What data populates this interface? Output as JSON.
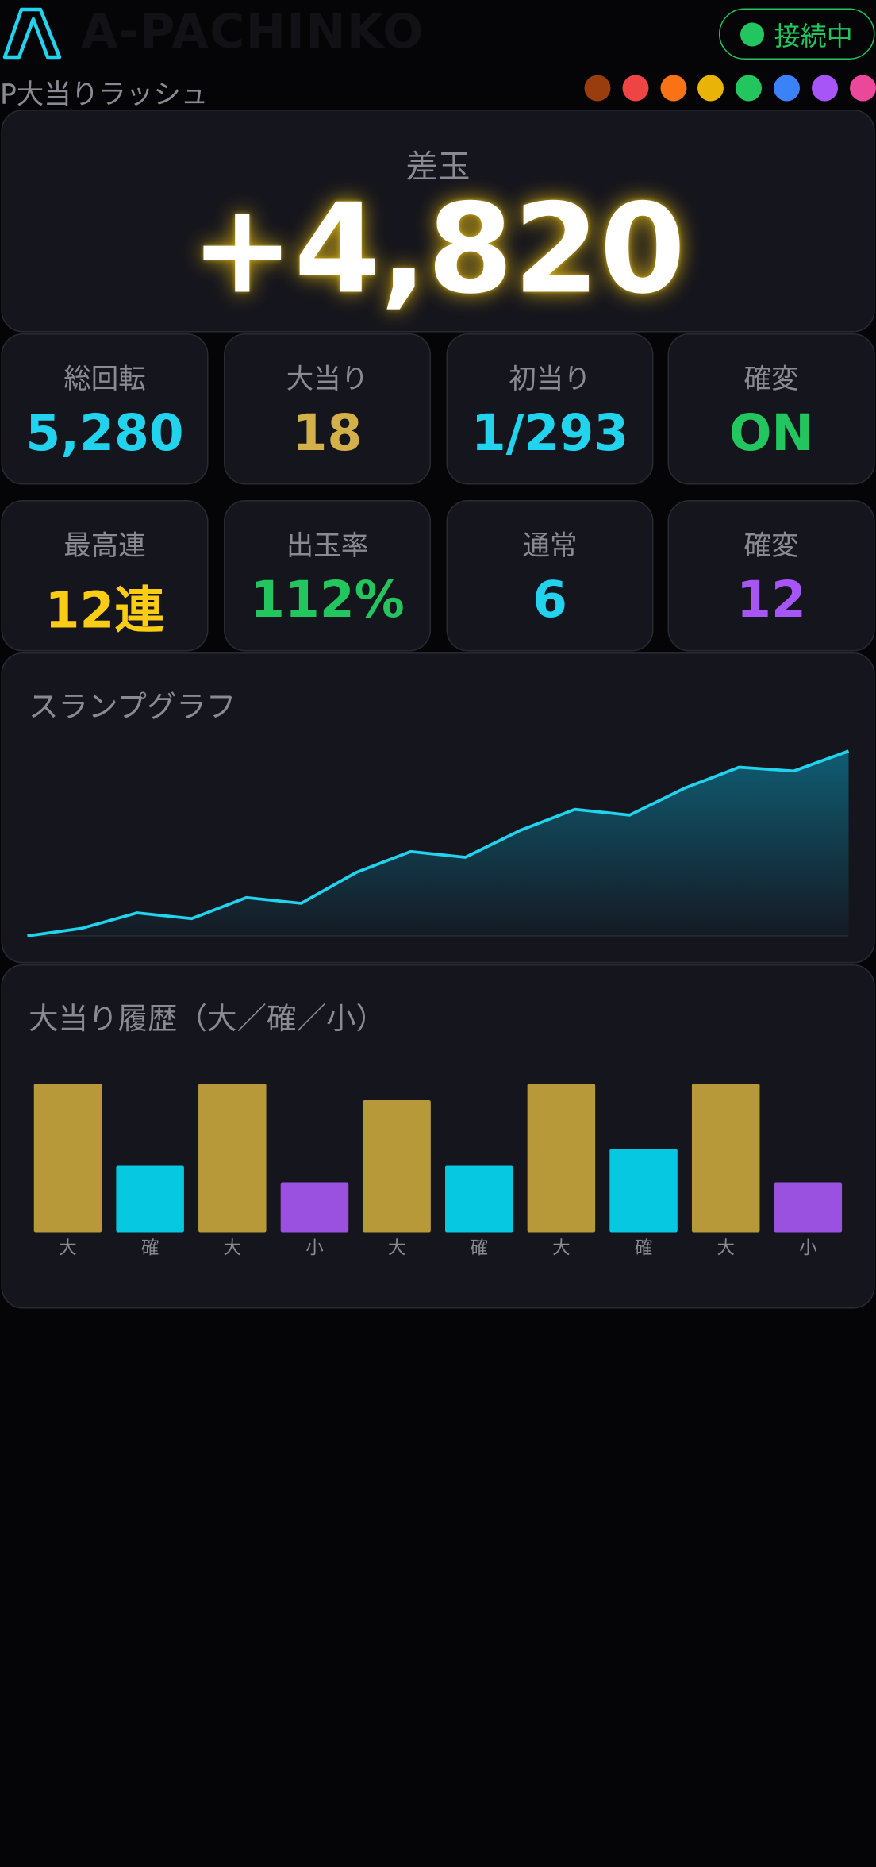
{
  "header": {
    "logo": "A-PACHINKO",
    "machine": "P大当りラッシュ",
    "status": "接続中"
  },
  "balance": {
    "label": "差玉",
    "value": "+4,820"
  },
  "stats": [
    {
      "label": "総回転",
      "value": "5,280",
      "color": "#22d3ee"
    },
    {
      "label": "大当り",
      "value": "18",
      "color": "#d4b04a"
    },
    {
      "label": "初当り",
      "value": "1/293",
      "color": "#22d3ee"
    },
    {
      "label": "確変",
      "value": "ON",
      "color": "#22c55e"
    },
    {
      "label": "最高連",
      "value": "12連",
      "color": "#facc15"
    },
    {
      "label": "出玉率",
      "value": "112%",
      "color": "#22c55e"
    },
    {
      "label": "通常",
      "value": "6",
      "color": "#22d3ee"
    },
    {
      "label": "確変",
      "value": "12",
      "color": "#a855f7"
    }
  ],
  "slump_graph": {
    "type": "line",
    "title": "スランプグラフ",
    "values": [
      0,
      200,
      600,
      450,
      1000,
      850,
      1650,
      2200,
      2050,
      2750,
      3300,
      3150,
      3850,
      4400,
      4300,
      4820
    ],
    "ylim": [
      0,
      5000
    ],
    "color": "#22d3ee"
  },
  "history": {
    "type": "bar",
    "title": "大当り履歴（大／確／小）",
    "categories": [
      "大",
      "確",
      "大",
      "小",
      "大",
      "確",
      "大",
      "確",
      "大",
      "小"
    ],
    "values": [
      125,
      56,
      125,
      42,
      111,
      56,
      125,
      70,
      125,
      42
    ],
    "colors": [
      "#b8993a",
      "#06c8e0",
      "#b8993a",
      "#9b51e0",
      "#b8993a",
      "#06c8e0",
      "#b8993a",
      "#06c8e0",
      "#b8993a",
      "#9b51e0"
    ],
    "ylim": [
      0,
      140
    ]
  }
}
